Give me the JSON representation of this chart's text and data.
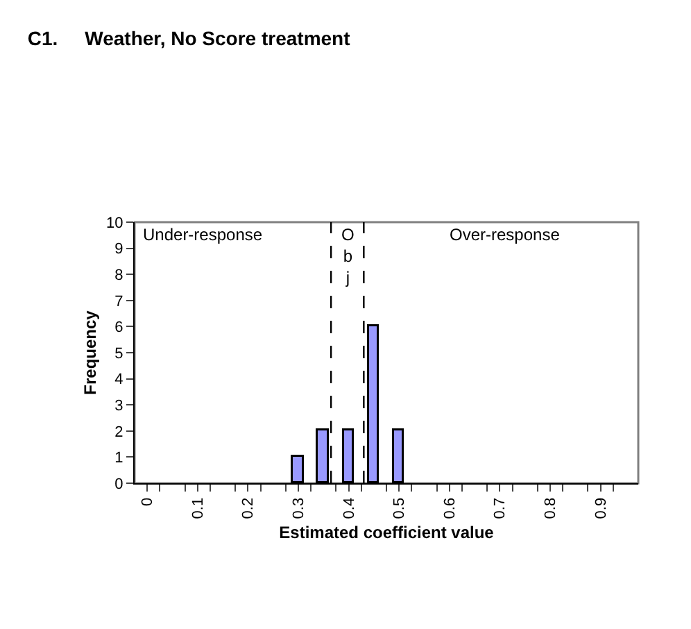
{
  "chart_data": {
    "type": "bar",
    "title": "C1.     Weather, No Score treatment",
    "xlabel": "Estimated coefficient value",
    "ylabel": "Frequency",
    "x": [
      0.3,
      0.35,
      0.4,
      0.45,
      0.5
    ],
    "series": [
      {
        "color": "#9999ff",
        "values": [
          1,
          2,
          2,
          6,
          2
        ]
      }
    ],
    "xlim": [
      -0.025,
      0.975
    ],
    "xticks": [
      0,
      0.1,
      0.2,
      0.3,
      0.4,
      0.5,
      0.6,
      0.7,
      0.8,
      0.9,
      {
        "value": 0.025,
        "label": null
      },
      {
        "value": 0.075,
        "label": null
      },
      {
        "value": 0.125,
        "label": null
      },
      {
        "value": 0.175,
        "label": null
      },
      {
        "value": 0.225,
        "label": null
      },
      {
        "value": 0.275,
        "label": null
      },
      {
        "value": 0.325,
        "label": null
      },
      {
        "value": 0.375,
        "label": null
      },
      {
        "value": 0.425,
        "label": null
      },
      {
        "value": 0.475,
        "label": null
      },
      {
        "value": 0.525,
        "label": null
      },
      {
        "value": 0.575,
        "label": null
      },
      {
        "value": 0.625,
        "label": null
      },
      {
        "value": 0.675,
        "label": null
      },
      {
        "value": 0.725,
        "label": null
      },
      {
        "value": 0.775,
        "label": null
      },
      {
        "value": 0.825,
        "label": null
      },
      {
        "value": 0.875,
        "label": null
      },
      {
        "value": 0.925,
        "label": null
      }
    ],
    "ylim": [
      0,
      10
    ],
    "yticks": [
      0,
      1,
      2,
      3,
      4,
      5,
      6,
      7,
      8,
      9,
      10
    ],
    "ref_lines": [
      {
        "axis": "x",
        "value": 0.365,
        "line_style": "dashed",
        "color": "#000000"
      },
      {
        "axis": "x",
        "value": 0.43,
        "line_style": "dashed",
        "color": "#000000"
      }
    ],
    "annotations": [
      "Under-response",
      "Obj",
      "Over-response"
    ],
    "grid": false
  }
}
